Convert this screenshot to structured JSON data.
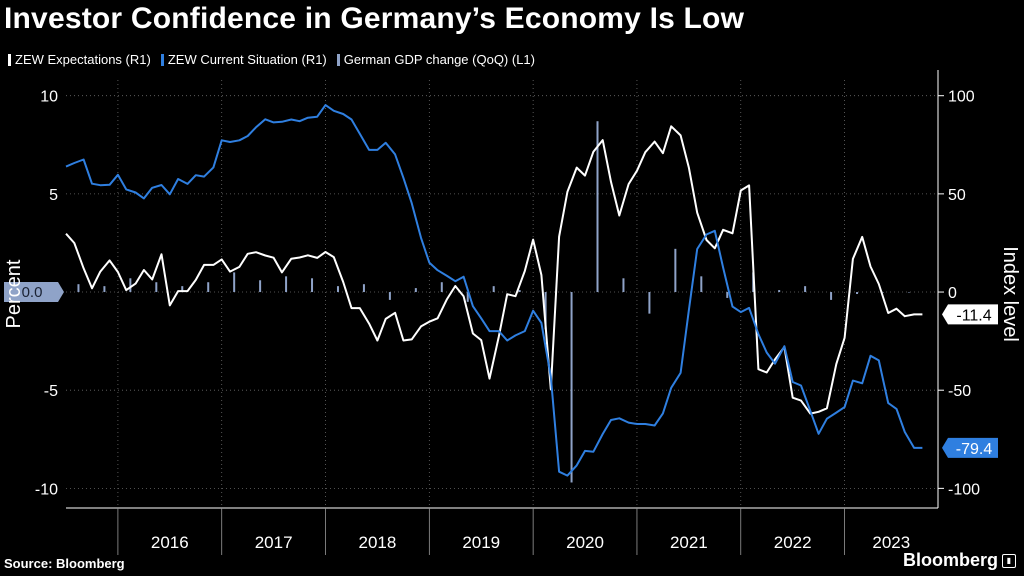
{
  "title": "Investor Confidence in Germany’s Economy Is Low",
  "legend": [
    {
      "label": "ZEW Expectations (R1)",
      "color": "#ffffff"
    },
    {
      "label": "ZEW Current Situation (R1)",
      "color": "#2f7fe0"
    },
    {
      "label": "German GDP change (QoQ) (L1)",
      "color": "#8fa3c8"
    }
  ],
  "source": "Source: Bloomberg",
  "brand": "Bloomberg",
  "chart_data": {
    "type": "line",
    "title": "Investor Confidence in Germany’s Economy Is Low",
    "left_axis": {
      "label": "Percent",
      "range": [
        -11,
        10.8
      ],
      "ticks": [
        10,
        5,
        0,
        -5,
        -10
      ],
      "tick_labels": [
        "10",
        "5",
        "0.0",
        "-5",
        "-10"
      ]
    },
    "right_axis": {
      "label": "Index level",
      "range": [
        -110,
        108
      ],
      "ticks": [
        100,
        50,
        0,
        -50,
        -100
      ],
      "tick_labels": [
        "100",
        "50",
        "0",
        "-50",
        "-100"
      ]
    },
    "x_range": [
      2015.5,
      2023.9
    ],
    "x_ticks": [
      2016,
      2017,
      2018,
      2019,
      2020,
      2021,
      2022,
      2023
    ],
    "x_tick_labels": [
      "2016",
      "2017",
      "2018",
      "2019",
      "2020",
      "2021",
      "2022",
      "2023"
    ],
    "zero_label": "0.0",
    "series": [
      {
        "name": "ZEW Expectations (R1)",
        "axis": "right",
        "color": "#ffffff",
        "end_label": "-11.4",
        "x": [
          2015.5,
          2015.58,
          2015.67,
          2015.75,
          2015.83,
          2015.92,
          2016.0,
          2016.08,
          2016.17,
          2016.25,
          2016.33,
          2016.42,
          2016.5,
          2016.58,
          2016.67,
          2016.75,
          2016.83,
          2016.92,
          2017.0,
          2017.08,
          2017.17,
          2017.25,
          2017.33,
          2017.42,
          2017.5,
          2017.58,
          2017.67,
          2017.75,
          2017.83,
          2017.92,
          2018.0,
          2018.08,
          2018.17,
          2018.25,
          2018.33,
          2018.42,
          2018.5,
          2018.58,
          2018.67,
          2018.75,
          2018.83,
          2018.92,
          2019.0,
          2019.08,
          2019.17,
          2019.25,
          2019.33,
          2019.42,
          2019.5,
          2019.58,
          2019.67,
          2019.75,
          2019.83,
          2019.92,
          2020.0,
          2020.08,
          2020.17,
          2020.25,
          2020.33,
          2020.42,
          2020.5,
          2020.58,
          2020.67,
          2020.75,
          2020.83,
          2020.92,
          2021.0,
          2021.08,
          2021.17,
          2021.25,
          2021.33,
          2021.42,
          2021.5,
          2021.58,
          2021.67,
          2021.75,
          2021.83,
          2021.92,
          2022.0,
          2022.08,
          2022.17,
          2022.25,
          2022.33,
          2022.42,
          2022.5,
          2022.58,
          2022.67,
          2022.75,
          2022.83,
          2022.92,
          2023.0,
          2023.08,
          2023.17,
          2023.25,
          2023.33,
          2023.42,
          2023.5,
          2023.58,
          2023.67,
          2023.75
        ],
        "values": [
          29.7,
          25.0,
          12.1,
          1.9,
          10.4,
          16.1,
          10.2,
          1.0,
          4.3,
          11.2,
          6.4,
          19.2,
          -6.8,
          0.5,
          0.5,
          6.2,
          13.8,
          13.8,
          16.6,
          10.4,
          12.8,
          19.5,
          20.3,
          18.6,
          17.5,
          10.0,
          17.0,
          17.6,
          18.7,
          17.4,
          20.4,
          17.8,
          5.1,
          -8.2,
          -8.2,
          -16.1,
          -24.7,
          -13.7,
          -10.6,
          -24.7,
          -24.1,
          -17.5,
          -15.1,
          -13.4,
          -3.6,
          3.1,
          -2.1,
          -21.1,
          -24.5,
          -44.1,
          -22.5,
          -1.1,
          -2.1,
          10.7,
          26.7,
          8.7,
          -49.5,
          28.2,
          51.0,
          63.4,
          59.3,
          71.5,
          77.4,
          56.1,
          39.0,
          55.0,
          61.8,
          71.2,
          76.6,
          70.7,
          84.4,
          79.8,
          63.3,
          40.4,
          26.5,
          22.3,
          31.7,
          29.9,
          51.7,
          54.3,
          -39.3,
          -41.0,
          -34.3,
          -28.0,
          -53.8,
          -55.3,
          -61.9,
          -61.0,
          -59.2,
          -36.7,
          -23.3,
          16.9,
          28.1,
          13.0,
          4.1,
          -10.7,
          -8.5,
          -12.3,
          -11.4,
          -11.4
        ]
      },
      {
        "name": "ZEW Current Situation (R1)",
        "axis": "right",
        "color": "#2f7fe0",
        "end_label": "-79.4",
        "x": [
          2015.5,
          2015.58,
          2015.67,
          2015.75,
          2015.83,
          2015.92,
          2016.0,
          2016.08,
          2016.17,
          2016.25,
          2016.33,
          2016.42,
          2016.5,
          2016.58,
          2016.67,
          2016.75,
          2016.83,
          2016.92,
          2017.0,
          2017.08,
          2017.17,
          2017.25,
          2017.33,
          2017.42,
          2017.5,
          2017.58,
          2017.67,
          2017.75,
          2017.83,
          2017.92,
          2018.0,
          2018.08,
          2018.17,
          2018.25,
          2018.33,
          2018.42,
          2018.5,
          2018.58,
          2018.67,
          2018.75,
          2018.83,
          2018.92,
          2019.0,
          2019.08,
          2019.17,
          2019.25,
          2019.33,
          2019.42,
          2019.5,
          2019.58,
          2019.67,
          2019.75,
          2019.83,
          2019.92,
          2020.0,
          2020.08,
          2020.17,
          2020.25,
          2020.33,
          2020.42,
          2020.5,
          2020.58,
          2020.67,
          2020.75,
          2020.83,
          2020.92,
          2021.0,
          2021.08,
          2021.17,
          2021.25,
          2021.33,
          2021.42,
          2021.5,
          2021.58,
          2021.67,
          2021.75,
          2021.83,
          2021.92,
          2022.0,
          2022.08,
          2022.17,
          2022.25,
          2022.33,
          2022.42,
          2022.5,
          2022.58,
          2022.67,
          2022.75,
          2022.83,
          2022.92,
          2023.0,
          2023.08,
          2023.17,
          2023.25,
          2023.33,
          2023.42,
          2023.5,
          2023.58,
          2023.67,
          2023.75
        ],
        "values": [
          63.9,
          65.7,
          67.5,
          55.2,
          54.4,
          54.6,
          59.7,
          52.3,
          50.7,
          47.7,
          53.1,
          54.5,
          49.8,
          57.6,
          55.1,
          59.5,
          58.8,
          63.5,
          77.3,
          76.4,
          77.3,
          79.5,
          83.9,
          88.0,
          86.4,
          86.7,
          87.9,
          87.0,
          88.8,
          89.3,
          95.2,
          92.3,
          90.7,
          87.9,
          80.6,
          72.4,
          72.4,
          76.0,
          70.1,
          58.2,
          45.3,
          27.6,
          15.0,
          11.1,
          8.2,
          5.5,
          7.8,
          -7.2,
          -13.4,
          -19.9,
          -19.9,
          -24.7,
          -22.1,
          -19.9,
          -9.5,
          -15.7,
          -43.1,
          -91.5,
          -93.5,
          -88.3,
          -80.9,
          -81.3,
          -72.3,
          -65.2,
          -64.3,
          -66.5,
          -67.2,
          -67.2,
          -68.0,
          -61.8,
          -48.8,
          -41.2,
          -9.1,
          21.9,
          29.3,
          31.2,
          12.5,
          -7.4,
          -10.2,
          -8.1,
          -21.4,
          -30.8,
          -36.5,
          -27.6,
          -45.8,
          -47.6,
          -60.5,
          -72.2,
          -64.5,
          -61.4,
          -58.6,
          -45.1,
          -46.5,
          -32.5,
          -34.8,
          -56.5,
          -59.5,
          -71.3,
          -79.4,
          -79.4
        ]
      },
      {
        "name": "German GDP change (QoQ) (L1)",
        "axis": "left",
        "color": "#8fa3c8",
        "type": "bar",
        "x": [
          2015.62,
          2015.87,
          2016.12,
          2016.37,
          2016.62,
          2016.87,
          2017.12,
          2017.37,
          2017.62,
          2017.87,
          2018.12,
          2018.37,
          2018.62,
          2018.87,
          2019.12,
          2019.37,
          2019.62,
          2019.87,
          2020.12,
          2020.37,
          2020.62,
          2020.87,
          2021.12,
          2021.37,
          2021.62,
          2021.87,
          2022.12,
          2022.37,
          2022.62,
          2022.87,
          2023.12,
          2023.37,
          2023.62
        ],
        "values": [
          0.4,
          0.3,
          0.7,
          0.5,
          0.3,
          0.5,
          1.0,
          0.6,
          0.8,
          0.7,
          0.3,
          0.4,
          -0.4,
          0.2,
          0.5,
          -0.5,
          0.3,
          0.1,
          -1.9,
          -9.7,
          8.7,
          0.7,
          -1.1,
          2.2,
          0.8,
          -0.3,
          1.0,
          0.1,
          0.3,
          -0.4,
          -0.1,
          0.0,
          0.0
        ]
      }
    ]
  }
}
